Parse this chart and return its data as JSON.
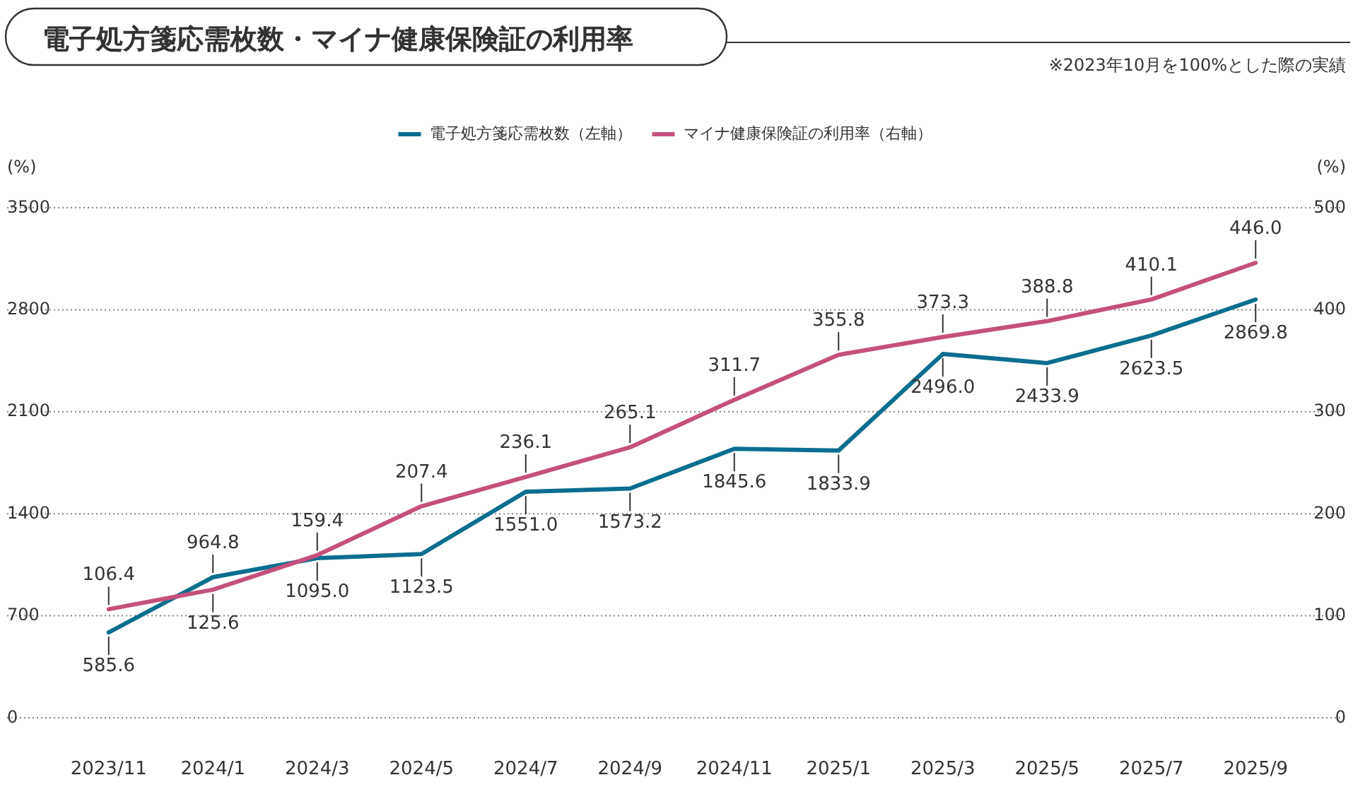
{
  "chart_data": {
    "type": "line",
    "title": "電子処方箋応需枚数・マイナ健康保険証の利用率",
    "annotations": [
      "※2023年10月を100%とした際の実績"
    ],
    "ylabel": "(%)",
    "y2label": "(%)",
    "categories": [
      "2023/11",
      "2024/1",
      "2024/3",
      "2024/5",
      "2024/7",
      "2024/9",
      "2024/11",
      "2025/1",
      "2025/3",
      "2025/5",
      "2025/7",
      "2025/9"
    ],
    "ylim": [
      0,
      3500
    ],
    "yticks": [
      0,
      700,
      1400,
      2100,
      2800,
      3500
    ],
    "y2lim": [
      0,
      500
    ],
    "y2ticks": [
      0,
      100,
      200,
      300,
      400,
      500
    ],
    "grid": "y",
    "legend": "top",
    "series": [
      {
        "name": "電子処方箋応需枚数（左軸）",
        "color": "#0a6e8f",
        "values": [
          585.6,
          964.8,
          1095.0,
          1123.5,
          1551.0,
          1573.2,
          1845.6,
          1833.9,
          2496.0,
          2433.9,
          2623.5,
          2869.8
        ],
        "value_labels": [
          "585.6",
          "964.8",
          "1095.0",
          "1123.5",
          "1551.0",
          "1573.2",
          "1845.6",
          "1833.9",
          "2496.0",
          "2433.9",
          "2623.5",
          "2869.8"
        ]
      },
      {
        "name": "マイナ健康保険証の利用率（右軸）",
        "color": "#c4507c",
        "axis": "y2",
        "values": [
          106.4,
          125.6,
          159.4,
          207.4,
          236.1,
          265.1,
          311.7,
          355.8,
          373.3,
          388.8,
          410.1,
          446.0
        ],
        "value_labels": [
          "106.4",
          "125.6",
          "159.4",
          "207.4",
          "236.1",
          "265.1",
          "311.7",
          "355.8",
          "373.3",
          "388.8",
          "410.1",
          "446.0"
        ]
      }
    ]
  }
}
